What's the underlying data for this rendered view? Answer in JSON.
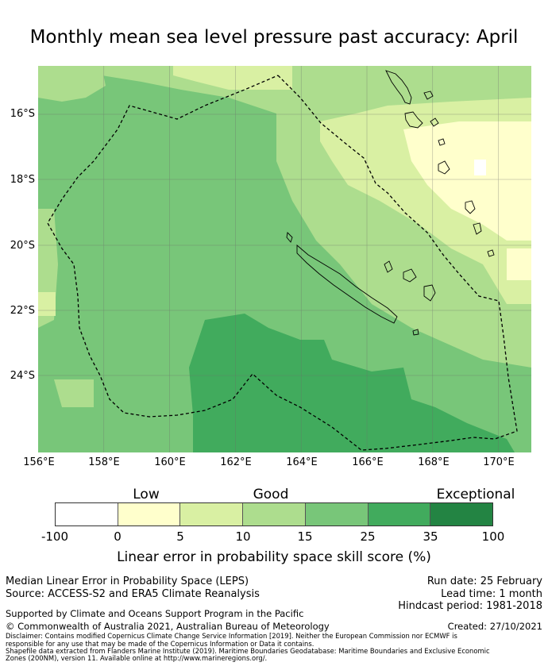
{
  "title": "Monthly mean sea level pressure past accuracy: April",
  "map": {
    "x_ticks": [
      "156°E",
      "158°E",
      "160°E",
      "162°E",
      "164°E",
      "166°E",
      "168°E",
      "170°E"
    ],
    "y_ticks": [
      "16°S",
      "18°S",
      "20°S",
      "22°S",
      "24°S"
    ],
    "lon_range": [
      156,
      171
    ],
    "lat_range": [
      -14.55,
      -26.4
    ],
    "region_outline": "dashed maritime boundary (EEZ)"
  },
  "colorbar": {
    "categories": [
      "Low",
      "Good",
      "Exceptional"
    ],
    "ticks": [
      "-100",
      "0",
      "5",
      "10",
      "15",
      "25",
      "35",
      "100"
    ],
    "colors": [
      "#ffffff",
      "#ffffcc",
      "#d9f0a3",
      "#addd8e",
      "#78c679",
      "#41ab5d",
      "#238443"
    ],
    "title": "Linear error in probability space skill score (%)"
  },
  "info": {
    "line1": "Median Linear Error in Probability Space (LEPS)",
    "line2": "Source: ACCESS-S2 and ERA5 Climate Reanalysis",
    "run_date": "Run date: 25 February",
    "lead_time": "Lead time: 1 month",
    "hindcast": "Hindcast period: 1981-2018",
    "support": "Supported by Climate and Oceans Support Program in the Pacific",
    "copyright": "© Commonwealth of Australia 2021, Australian Bureau of Meteorology",
    "created": "Created: 27/10/2021",
    "disclaimer1": "Disclaimer: Contains modified Copernicus Climate Change Service Information [2019]. Neither the European Commission nor ECMWF is",
    "disclaimer2": "responsible for any use that may be made of the Copernicus Information or Data it contains.",
    "disclaimer3": "Shapefile data extracted from Flanders Marine Institute (2019). Maritime Boundaries Geodatabase: Maritime Boundaries and Exclusive Economic",
    "disclaimer4": "Zones (200NM), version 11. Available online at http://www.marineregions.org/."
  }
}
